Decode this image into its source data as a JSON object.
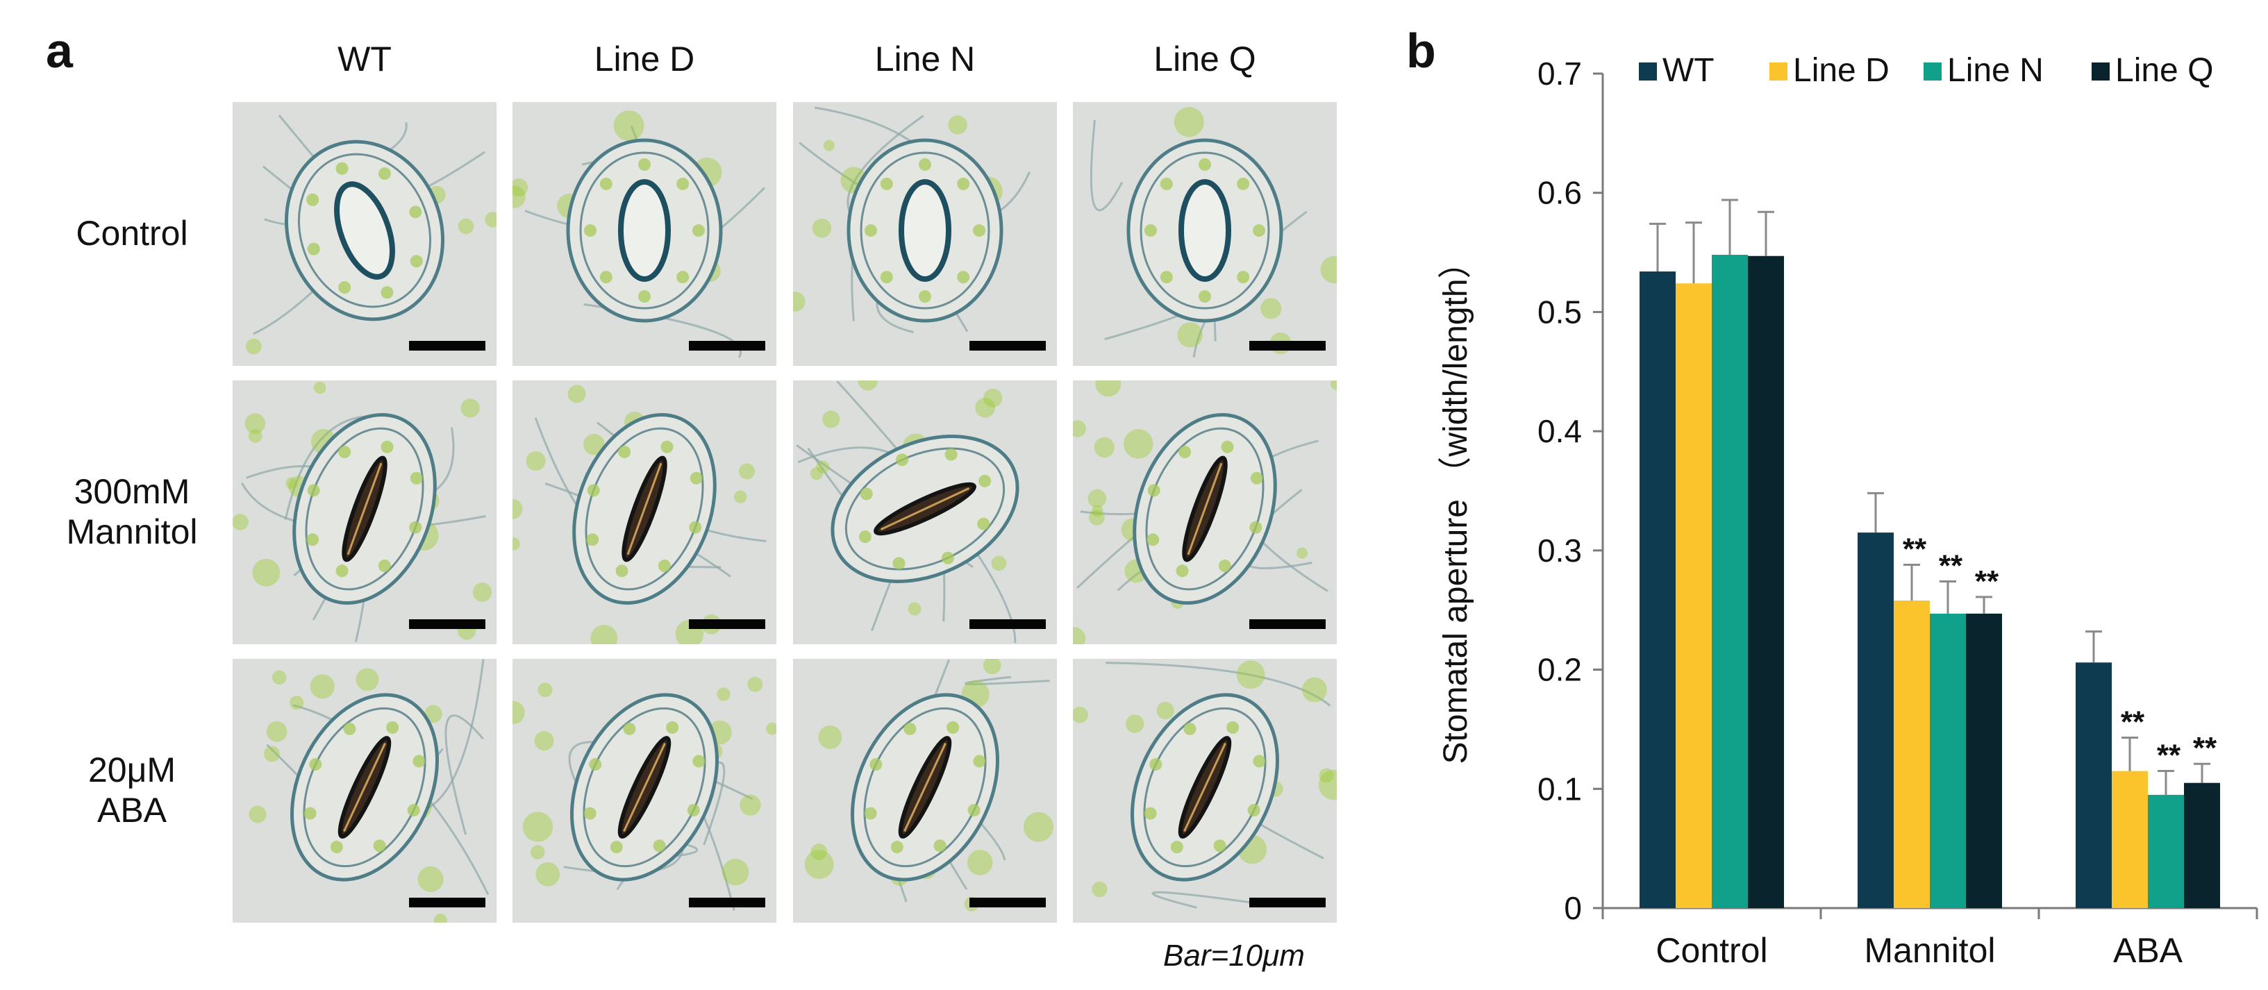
{
  "panel_a": {
    "letter": "a",
    "columns": [
      "WT",
      "Line D",
      "Line N",
      "Line Q"
    ],
    "rows": [
      {
        "lines": [
          "Control"
        ],
        "state": "open"
      },
      {
        "lines": [
          "300mM",
          "Mannitol"
        ],
        "state": "closed"
      },
      {
        "lines": [
          "20μM",
          "ABA"
        ],
        "state": "closed"
      }
    ],
    "scale_note": "Bar=10μm"
  },
  "panel_b": {
    "letter": "b"
  },
  "chart_data": {
    "type": "bar",
    "categories": [
      "Control",
      "Mannitol",
      "ABA"
    ],
    "ylabel": "Stomatal aperture （width/length）",
    "xlabel": "",
    "ylim": [
      0,
      0.7
    ],
    "yticks": [
      0,
      0.1,
      0.2,
      0.3,
      0.4,
      0.5,
      0.6,
      0.7
    ],
    "ytick_labels": [
      "0",
      "0.1",
      "0.2",
      "0.3",
      "0.4",
      "0.5",
      "0.6",
      "0.7"
    ],
    "grid": false,
    "legend_placement": "top",
    "series": [
      {
        "name": "WT",
        "color": "#0e3b4f",
        "values": [
          0.534,
          0.315,
          0.206
        ],
        "errors": [
          0.04,
          0.033,
          0.026
        ],
        "sig": [
          "",
          "",
          ""
        ]
      },
      {
        "name": "Line D",
        "color": "#fcc42c",
        "values": [
          0.524,
          0.258,
          0.115
        ],
        "errors": [
          0.051,
          0.03,
          0.028
        ],
        "sig": [
          "",
          "**",
          "**"
        ]
      },
      {
        "name": "Line N",
        "color": "#11a08a",
        "values": [
          0.548,
          0.247,
          0.095
        ],
        "errors": [
          0.046,
          0.027,
          0.02
        ],
        "sig": [
          "",
          "**",
          "**"
        ]
      },
      {
        "name": "Line Q",
        "color": "#0a242e",
        "values": [
          0.547,
          0.247,
          0.105
        ],
        "errors": [
          0.037,
          0.014,
          0.016
        ],
        "sig": [
          "",
          "**",
          "**"
        ]
      }
    ]
  }
}
